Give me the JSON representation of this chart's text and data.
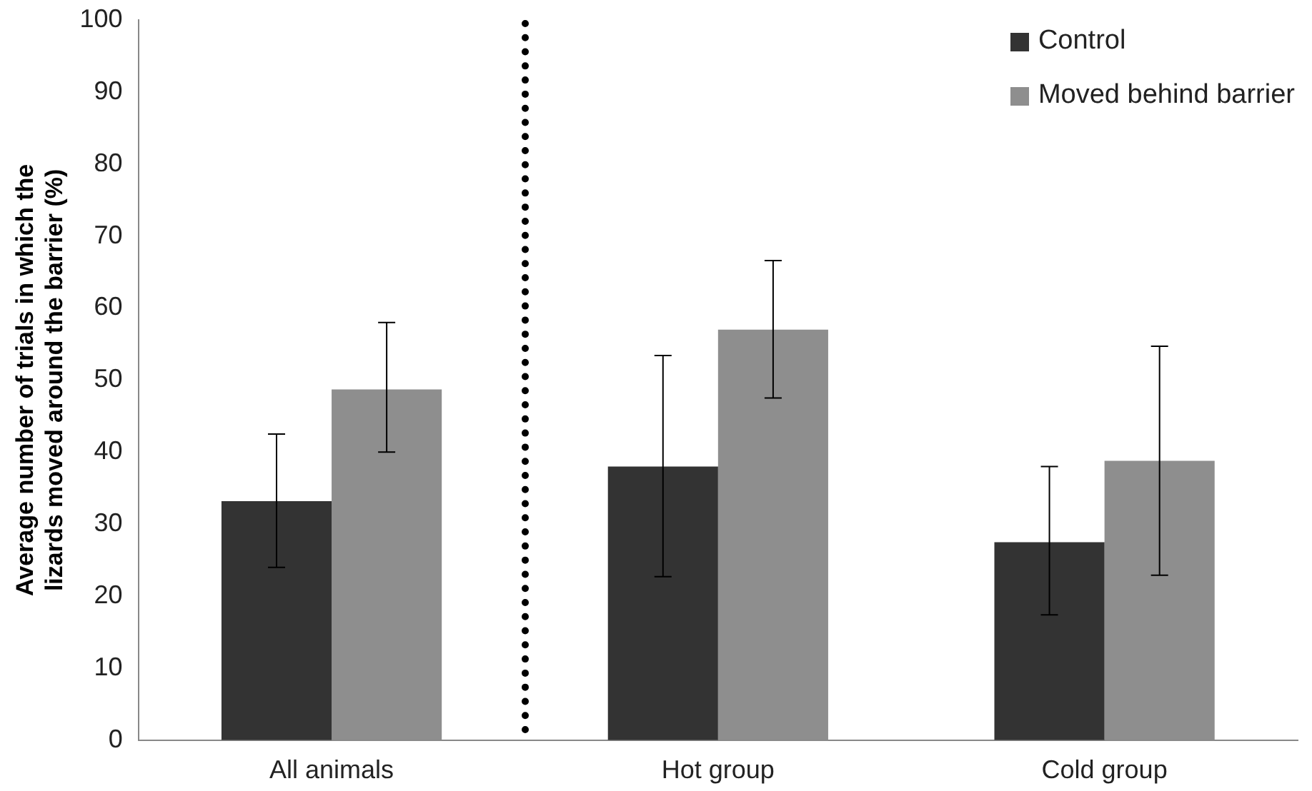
{
  "chart_data": {
    "type": "bar",
    "ylabel": "Average number of trials in which the lizards moved around the barrier (%)",
    "categories": [
      "All animals",
      "Hot group",
      "Cold group"
    ],
    "series": [
      {
        "name": "Control",
        "color": "#333333",
        "values": [
          33.2,
          38,
          27.5
        ],
        "errors": [
          [
            24,
            42.5
          ],
          [
            22.7,
            53.4
          ],
          [
            17.4,
            38
          ]
        ]
      },
      {
        "name": "Moved behind barrier",
        "color": "#8e8e8e",
        "values": [
          48.7,
          57,
          38.8
        ],
        "errors": [
          [
            40,
            58
          ],
          [
            47.5,
            66.6
          ],
          [
            22.9,
            54.7
          ]
        ]
      }
    ],
    "ylim": [
      0,
      100
    ],
    "yticks": [
      0,
      10,
      20,
      30,
      40,
      50,
      60,
      70,
      80,
      90,
      100
    ],
    "grid": false,
    "legend": "top right"
  }
}
